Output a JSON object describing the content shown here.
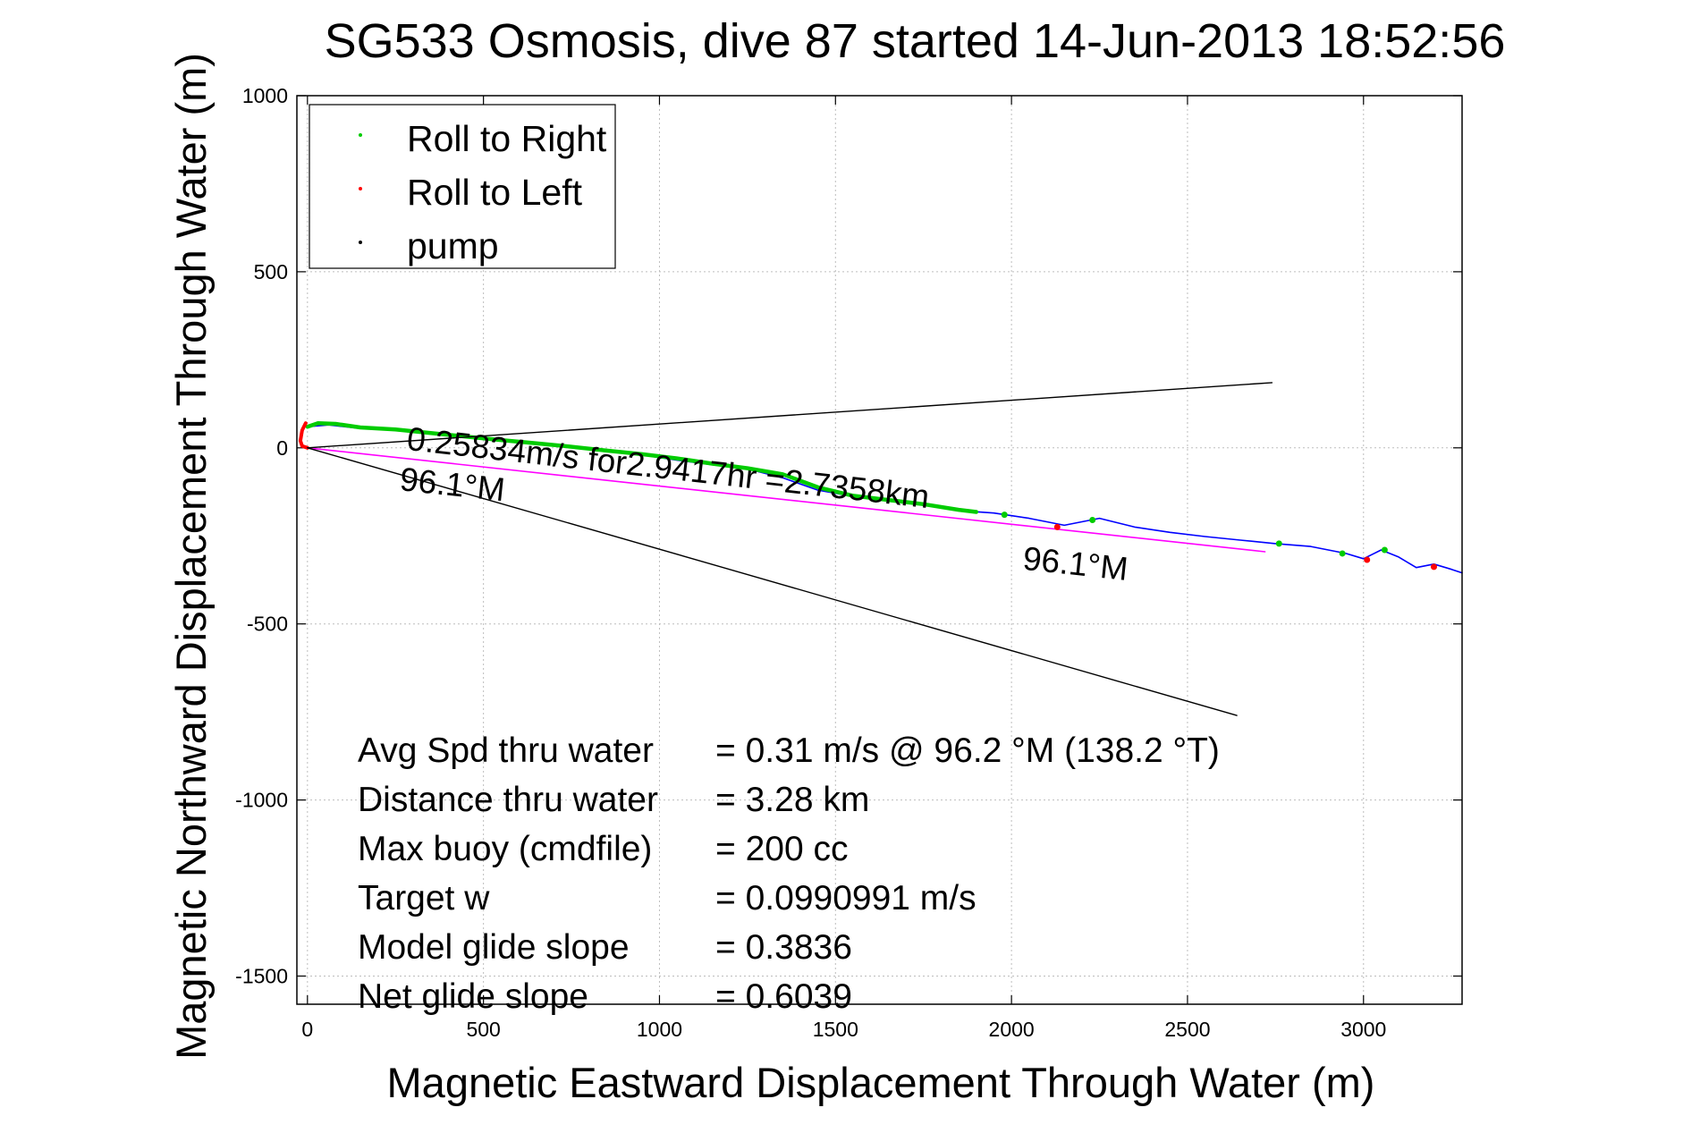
{
  "chart_data": {
    "type": "line",
    "title": "SG533 Osmosis, dive 87 started 14-Jun-2013 18:52:56",
    "xlabel": "Magnetic Eastward Displacement Through Water (m)",
    "ylabel": "Magnetic Northward Displacement Through Water (m)",
    "xlim": [
      -30,
      3280
    ],
    "ylim": [
      -1580,
      1000
    ],
    "x_ticks": [
      0,
      500,
      1000,
      1500,
      2000,
      2500,
      3000
    ],
    "y_ticks": [
      1000,
      500,
      0,
      -500,
      -1000,
      -1500
    ],
    "grid": true,
    "legend": {
      "placement": "top-left",
      "entries": [
        {
          "label": "Roll to Right",
          "color": "#00cc00"
        },
        {
          "label": "Roll to Left",
          "color": "#ff0000"
        },
        {
          "label": "pump",
          "color": "#000000"
        }
      ]
    },
    "series": [
      {
        "color": "#0000ff",
        "x": [
          0,
          60,
          150,
          250,
          350,
          450,
          550,
          650,
          750,
          850,
          950,
          1050,
          1150,
          1250,
          1350,
          1450,
          1550,
          1650,
          1750,
          1850,
          1950,
          2050,
          2150,
          2250,
          2350,
          2450,
          2550,
          2650,
          2750,
          2850,
          2950,
          3000,
          3050,
          3100,
          3150,
          3200,
          3250,
          3280
        ],
        "y": [
          60,
          65,
          55,
          50,
          40,
          30,
          22,
          12,
          2,
          -8,
          -20,
          -35,
          -48,
          -60,
          -85,
          -120,
          -138,
          -150,
          -162,
          -178,
          -185,
          -200,
          -220,
          -200,
          -225,
          -240,
          -252,
          -262,
          -272,
          -280,
          -300,
          -315,
          -290,
          -310,
          -340,
          -330,
          -345,
          -355
        ]
      },
      {
        "color": "#00cc00",
        "x": [
          0,
          30,
          80,
          150,
          250,
          350,
          450,
          550,
          650,
          750,
          850,
          950,
          1050,
          1150,
          1250,
          1350,
          1450,
          1550,
          1650,
          1750,
          1850,
          1900
        ],
        "y": [
          60,
          70,
          68,
          58,
          52,
          42,
          32,
          22,
          13,
          3,
          -8,
          -18,
          -30,
          -45,
          -58,
          -75,
          -112,
          -136,
          -148,
          -160,
          -176,
          -182
        ]
      },
      {
        "color": "#ff0000",
        "x": [
          -5,
          -15,
          -20,
          -15,
          0
        ],
        "y": [
          70,
          50,
          20,
          5,
          0
        ]
      },
      {
        "color": "#ff00ff",
        "x": [
          0,
          2720
        ],
        "y": [
          0,
          -295
        ]
      },
      {
        "color": "#000000",
        "x": [
          0,
          2740
        ],
        "y": [
          0,
          185
        ]
      },
      {
        "color": "#000000",
        "x": [
          0,
          2640
        ],
        "y": [
          0,
          -760
        ]
      }
    ],
    "annotations": [
      {
        "text": "0.25834m/s for2.9417hr =2.7358km",
        "x": 280,
        "y": -5
      },
      {
        "text": "96.1°M",
        "x": 260,
        "y": -120
      },
      {
        "text": "96.1°M",
        "x": 2030,
        "y": -345
      }
    ],
    "stats": [
      {
        "label": "Avg Spd thru water",
        "value": "=  0.31 m/s @  96.2 °M (138.2 °T)"
      },
      {
        "label": "Distance thru water",
        "value": "=  3.28 km"
      },
      {
        "label": "Max buoy (cmdfile)",
        "value": "= 200 cc"
      },
      {
        "label": "Target w",
        "value": "= 0.0990991 m/s"
      },
      {
        "label": "Model glide slope",
        "value": "= 0.3836"
      },
      {
        "label": "Net glide slope",
        "value": "= 0.6039"
      }
    ]
  }
}
